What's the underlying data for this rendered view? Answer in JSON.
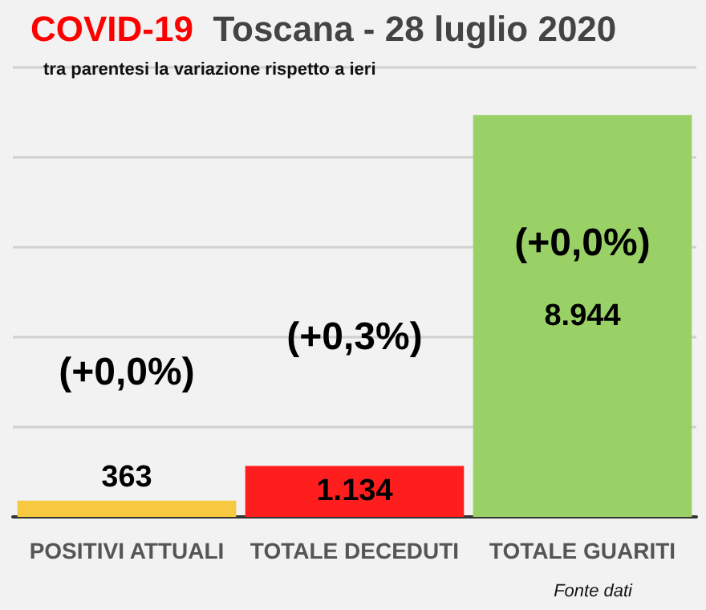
{
  "chart_data": {
    "type": "bar",
    "title": "COVID-19  Toscana - 28 luglio 2020",
    "subtitle": "tra parentesi la variazione rispetto a ieri",
    "categories": [
      "POSITIVI ATTUALI",
      "TOTALE DECEDUTI",
      "TOTALE GUARITI"
    ],
    "values": [
      363,
      1134,
      8944
    ],
    "colors": [
      "#f7c940",
      "#ff1e1e",
      "#99d166"
    ],
    "value_labels": [
      "363",
      "1.134",
      "8.944"
    ],
    "annotations": [
      "(+0,0%)",
      "(+0,3%)",
      "(+0,0%)",
      "Fonte dati"
    ],
    "grid": "y",
    "tick_labels": "x"
  }
}
